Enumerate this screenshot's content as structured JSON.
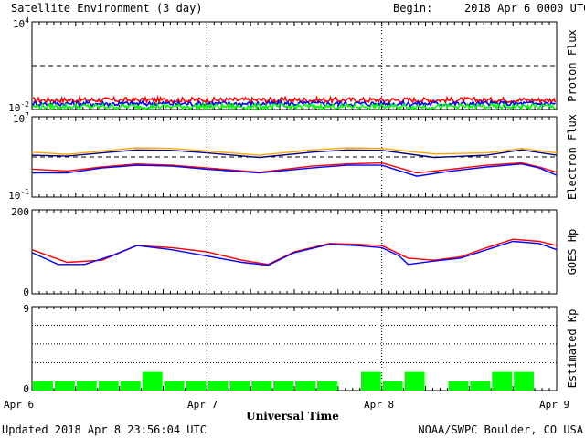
{
  "header": {
    "title": "Satellite Environment (3 day)",
    "begin_label": "Begin:",
    "begin_value": "2018 Apr 6 0000 UTC"
  },
  "footer": {
    "updated": "Updated 2018 Apr  8 23:56:04 UTC",
    "credit": "NOAA/SWPC Boulder, CO USA"
  },
  "colors": {
    "red": "#ff0000",
    "blue": "#0000ff",
    "green": "#00ff00",
    "orange": "#ffa500",
    "navy": "#000080"
  },
  "chart_data": [
    {
      "type": "line",
      "name": "proton-flux",
      "ylabel": "Proton Flux",
      "yscale": "log",
      "ylim": [
        0.01,
        10000
      ],
      "y_tick_labels": [
        "10^4",
        "10^-2"
      ],
      "threshold": 10,
      "x_tick_labels": [
        "Apr 6",
        "Apr 7",
        "Apr 8",
        "Apr 9"
      ],
      "series": [
        {
          "color": "red",
          "level": 0.045
        },
        {
          "color": "blue",
          "level": 0.025
        },
        {
          "color": "green",
          "level": 0.016
        }
      ]
    },
    {
      "type": "line",
      "name": "electron-flux",
      "ylabel": "Electron Flux",
      "yscale": "log",
      "ylim": [
        0.1,
        10000000
      ],
      "y_tick_labels": [
        "10^7",
        "10^-1"
      ],
      "threshold": 1000,
      "series": [
        {
          "color": "orange",
          "x_days": [
            0,
            0.2,
            0.4,
            0.6,
            0.8,
            1.0,
            1.3,
            1.6,
            1.8,
            2.0,
            2.3,
            2.6,
            2.8,
            3.0
          ],
          "values": [
            3000,
            1800,
            4000,
            8000,
            7000,
            4000,
            1500,
            5000,
            8000,
            7000,
            2000,
            2500,
            7000,
            2500
          ]
        },
        {
          "color": "navy",
          "x_days": [
            0,
            0.2,
            0.4,
            0.6,
            0.8,
            1.0,
            1.3,
            1.6,
            1.8,
            2.0,
            2.3,
            2.6,
            2.8,
            3.0
          ],
          "values": [
            1500,
            1200,
            2500,
            5000,
            4500,
            2500,
            900,
            3000,
            5000,
            4500,
            900,
            1500,
            5000,
            1500
          ]
        },
        {
          "color": "red",
          "x_days": [
            0,
            0.2,
            0.4,
            0.6,
            0.8,
            1.0,
            1.3,
            1.6,
            1.8,
            2.0,
            2.2,
            2.4,
            2.6,
            2.8,
            2.9,
            3.0
          ],
          "values": [
            60,
            40,
            100,
            200,
            150,
            80,
            30,
            120,
            200,
            250,
            25,
            60,
            150,
            250,
            100,
            30
          ]
        },
        {
          "color": "blue",
          "x_days": [
            0,
            0.2,
            0.4,
            0.6,
            0.8,
            1.0,
            1.3,
            1.6,
            1.8,
            2.0,
            2.2,
            2.4,
            2.6,
            2.8,
            2.9,
            3.0
          ],
          "values": [
            25,
            25,
            80,
            150,
            120,
            60,
            25,
            80,
            150,
            150,
            12,
            40,
            100,
            200,
            80,
            15
          ]
        }
      ]
    },
    {
      "type": "line",
      "name": "goes-hp",
      "ylabel": "GOES Hp",
      "ylim": [
        0,
        200
      ],
      "y_tick_labels": [
        "200",
        "0"
      ],
      "series": [
        {
          "color": "red",
          "x_days": [
            0,
            0.2,
            0.4,
            0.6,
            0.8,
            1.0,
            1.2,
            1.35,
            1.5,
            1.7,
            1.85,
            2.0,
            2.15,
            2.3,
            2.45,
            2.6,
            2.75,
            2.9,
            3.0
          ],
          "values": [
            105,
            75,
            80,
            115,
            110,
            100,
            80,
            70,
            100,
            120,
            118,
            115,
            85,
            80,
            88,
            110,
            130,
            125,
            115
          ]
        },
        {
          "color": "blue",
          "x_days": [
            0,
            0.15,
            0.3,
            0.45,
            0.6,
            0.8,
            1.0,
            1.2,
            1.35,
            1.5,
            1.7,
            1.85,
            2.0,
            2.1,
            2.15,
            2.3,
            2.45,
            2.6,
            2.75,
            2.9,
            3.0
          ],
          "values": [
            98,
            70,
            70,
            90,
            115,
            105,
            90,
            75,
            68,
            98,
            118,
            115,
            110,
            90,
            70,
            78,
            85,
            105,
            125,
            120,
            105
          ]
        }
      ]
    },
    {
      "type": "bar",
      "name": "estimated-kp",
      "ylabel": "Estimated Kp",
      "ylim": [
        0,
        9
      ],
      "y_tick_labels": [
        "9",
        "0"
      ],
      "xlabel": "Universal Time",
      "x_tick_labels": [
        "Apr 6",
        "Apr 7",
        "Apr 8",
        "Apr 9"
      ],
      "values": [
        1,
        1,
        1,
        1,
        1,
        2,
        1,
        1,
        1,
        1,
        1,
        1,
        1,
        1,
        0,
        2,
        1,
        2,
        0,
        1,
        1,
        2,
        2,
        0
      ]
    }
  ]
}
